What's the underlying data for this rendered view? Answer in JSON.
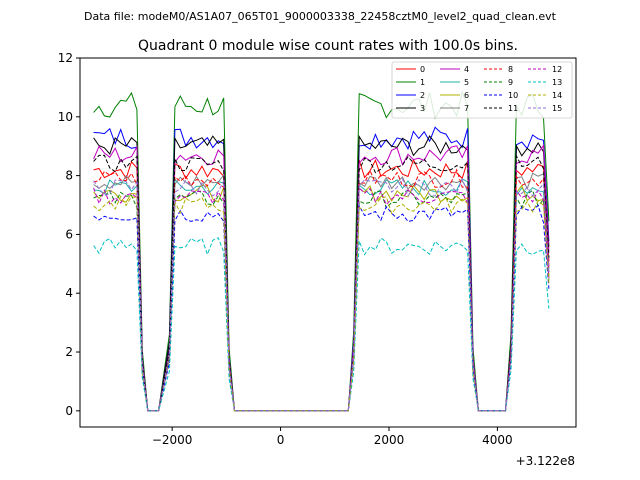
{
  "chart_data": {
    "type": "line",
    "suptitle": "Data file: modeM0/AS1A07_065T01_9000003338_22458cztM0_level2_quad_clean.evt",
    "title": "Quadrant 0 module wise count rates with 100.0s bins.",
    "xlabel": "",
    "ylabel": "",
    "offset_text": "+3.122e8",
    "xlim": [
      -3700,
      5450
    ],
    "ylim": [
      -0.55,
      12
    ],
    "x_ticks": [
      -2000,
      0,
      2000,
      4000
    ],
    "x_tick_labels": [
      "−2000",
      "0",
      "2000",
      "4000"
    ],
    "y_ticks": [
      0,
      2,
      4,
      6,
      8,
      10,
      12
    ],
    "y_tick_labels": [
      "0",
      "2",
      "4",
      "6",
      "8",
      "10",
      "12"
    ],
    "legend_position": "top-right",
    "legend_columns": 4,
    "series": [
      {
        "name": "0",
        "color": "#ff0000",
        "dash": "solid",
        "base": 8.2,
        "amp": 0.35
      },
      {
        "name": "1",
        "color": "#008000",
        "dash": "solid",
        "base": 10.4,
        "amp": 0.45
      },
      {
        "name": "2",
        "color": "#0000ff",
        "dash": "solid",
        "base": 9.3,
        "amp": 0.4
      },
      {
        "name": "3",
        "color": "#000000",
        "dash": "solid",
        "base": 9.0,
        "amp": 0.35
      },
      {
        "name": "4",
        "color": "#c000c0",
        "dash": "solid",
        "base": 8.7,
        "amp": 0.35
      },
      {
        "name": "5",
        "color": "#20b2aa",
        "dash": "solid",
        "base": 7.6,
        "amp": 0.3
      },
      {
        "name": "6",
        "color": "#b0b000",
        "dash": "solid",
        "base": 7.4,
        "amp": 0.3
      },
      {
        "name": "7",
        "color": "#808080",
        "dash": "solid",
        "base": 7.8,
        "amp": 0.3
      },
      {
        "name": "8",
        "color": "#ff0000",
        "dash": "dashed",
        "base": 7.9,
        "amp": 0.3
      },
      {
        "name": "9",
        "color": "#008000",
        "dash": "dashed",
        "base": 7.2,
        "amp": 0.3
      },
      {
        "name": "10",
        "color": "#0000ff",
        "dash": "dashed",
        "base": 6.7,
        "amp": 0.3
      },
      {
        "name": "11",
        "color": "#000000",
        "dash": "dashed",
        "base": 8.4,
        "amp": 0.3
      },
      {
        "name": "12",
        "color": "#c000c0",
        "dash": "dashed",
        "base": 7.3,
        "amp": 0.3
      },
      {
        "name": "13",
        "color": "#00bfbf",
        "dash": "dashed",
        "base": 5.6,
        "amp": 0.3
      },
      {
        "name": "14",
        "color": "#b0b000",
        "dash": "dashed",
        "base": 7.0,
        "amp": 0.3
      },
      {
        "name": "15",
        "color": "#9370db",
        "dash": "dashed",
        "base": 7.6,
        "amp": 0.3
      }
    ],
    "segments": [
      {
        "x_start": -3450,
        "x_end": -2550,
        "zero_from": -2450,
        "zero_to": -2250
      },
      {
        "x_start": -2050,
        "x_end": -950,
        "zero_from": -850,
        "zero_to": 1250
      },
      {
        "x_start": 1350,
        "x_end": 3550,
        "zero_from": 3650,
        "zero_to": 4150
      },
      {
        "x_start": 4250,
        "x_end": 4950,
        "zero_from": null,
        "zero_to": null
      }
    ],
    "bin_width": 100
  }
}
